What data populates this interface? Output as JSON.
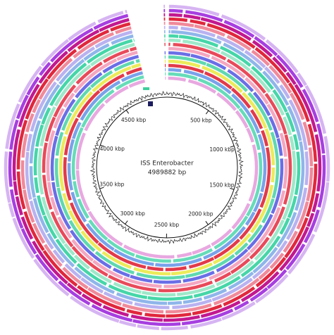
{
  "chart_data": {
    "type": "circular-genome",
    "title": "ISS Enterobacter",
    "subtitle": "4989882 bp",
    "xlim": [
      0,
      4989882
    ],
    "xticks": [
      {
        "value": 500000,
        "label": "500 kbp"
      },
      {
        "value": 1000000,
        "label": "1000 kbp"
      },
      {
        "value": 1500000,
        "label": "1500 kbp"
      },
      {
        "value": 2000000,
        "label": "2000 kbp"
      },
      {
        "value": 2500000,
        "label": "2500 kbp"
      },
      {
        "value": 3000000,
        "label": "3000 kbp"
      },
      {
        "value": 3500000,
        "label": "3500 kbp"
      },
      {
        "value": 4000000,
        "label": "4000 kbp"
      },
      {
        "value": 4500000,
        "label": "4500 kbp"
      }
    ],
    "ring_colors": [
      "#d6b4f2",
      "#a63fe0",
      "#c2188f",
      "#e0283c",
      "#f08a9a",
      "#b9b2f0",
      "#8fb6ea",
      "#46d6a8",
      "#9ee8c9",
      "#e84a5a",
      "#f4a6c0",
      "#6a6ee6",
      "#5fd8b0",
      "#ecea5a",
      "#e23a4a",
      "#7aa2ea",
      "#66dcb8",
      "#e8a8e0"
    ]
  }
}
